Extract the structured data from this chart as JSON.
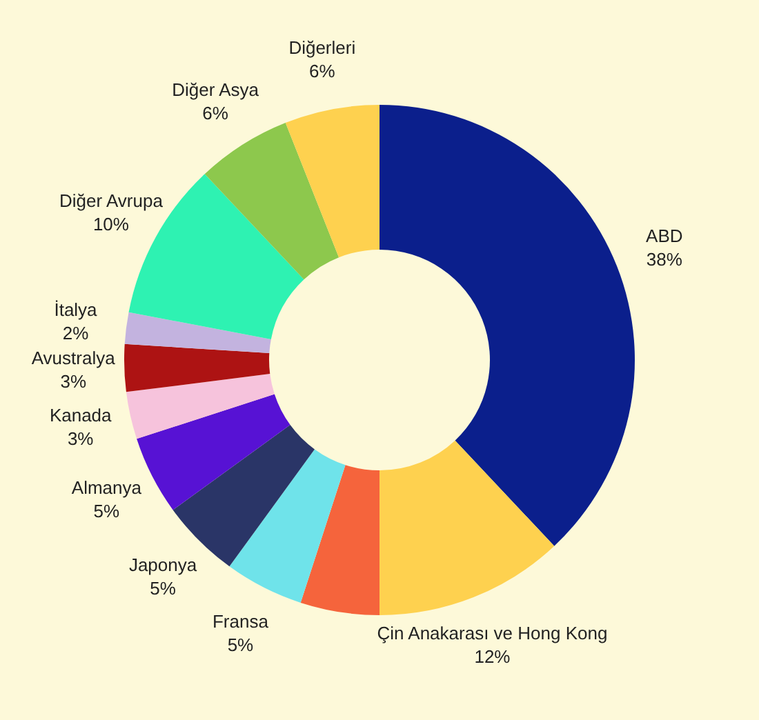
{
  "chart_data": {
    "type": "donut",
    "categories": [
      "ABD",
      "Çin Anakarası ve Hong Kong",
      null,
      "Fransa",
      "Japonya",
      "Almanya",
      "Kanada",
      "Avustralya",
      "İtalya",
      "Diğer Avrupa",
      "Diğer Asya",
      "Diğerleri"
    ],
    "values": [
      38,
      12,
      5,
      5,
      5,
      5,
      3,
      3,
      2,
      10,
      6,
      6
    ],
    "value_labels": [
      "38%",
      "12%",
      null,
      "5%",
      "5%",
      "5%",
      "3%",
      "3%",
      "2%",
      "10%",
      "6%",
      "6%"
    ],
    "colors": [
      "#0b1f8c",
      "#fed14f",
      "#f5643c",
      "#6fe3ea",
      "#2a3567",
      "#5712d4",
      "#f6c3dc",
      "#ad1313",
      "#c3b3df",
      "#2ef2b2",
      "#8dc84d",
      "#fed14f"
    ]
  }
}
